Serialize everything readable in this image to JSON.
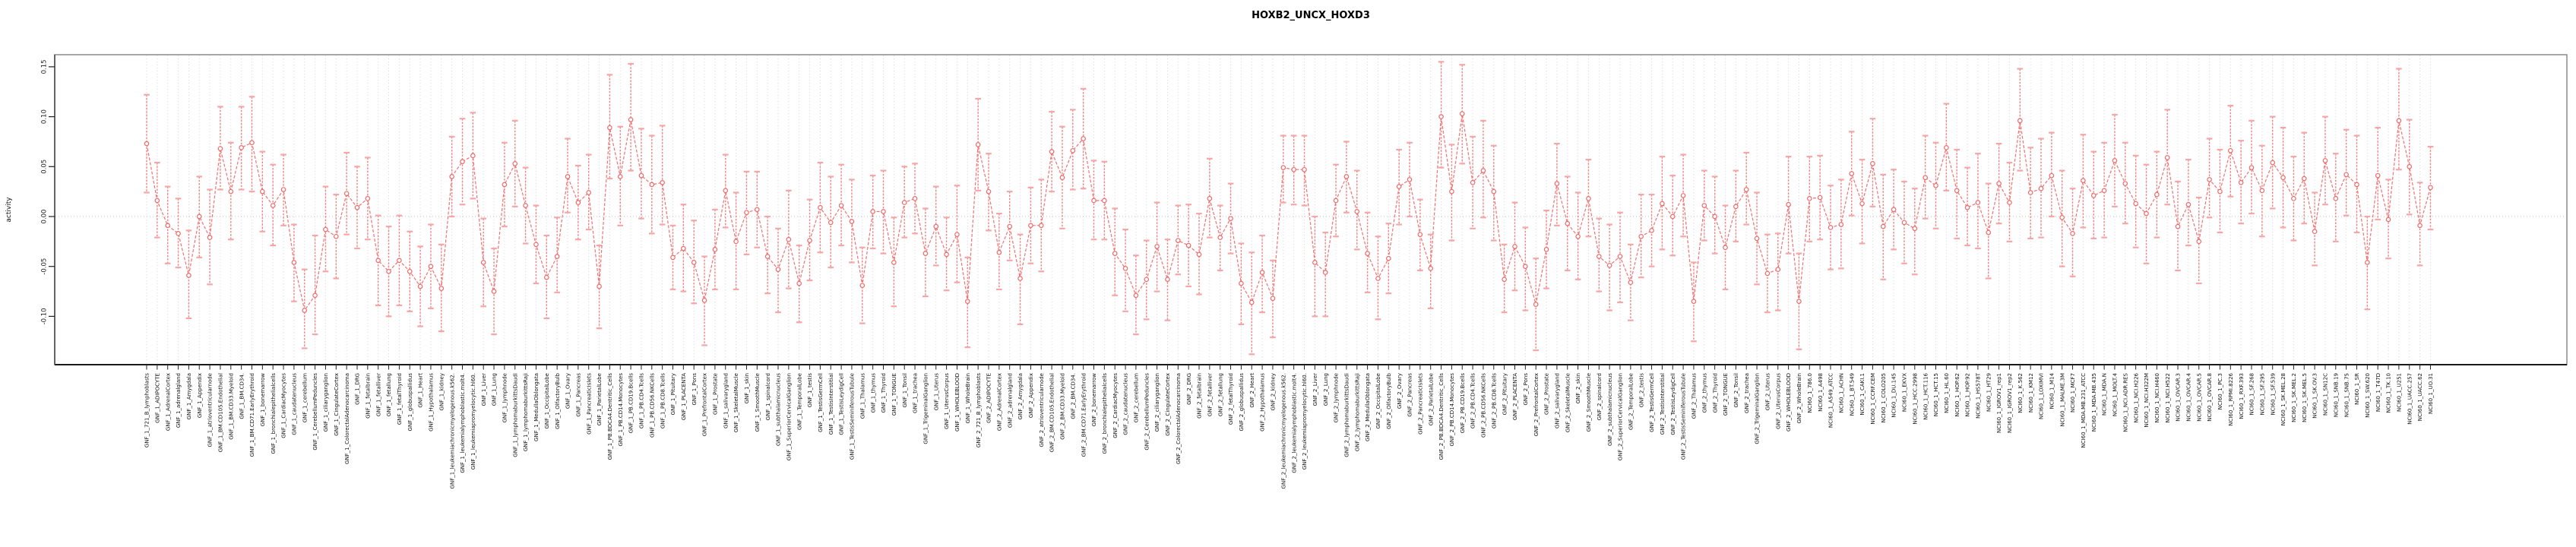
{
  "title": "HOXB2_UNCX_HOXD3",
  "axes": {
    "y_label": "activity",
    "y_ticks": [
      "0.15",
      "0.10",
      "0.05",
      "0.00",
      "-0.05",
      "-0.10"
    ]
  },
  "colors": {
    "series": "#ee6b6b",
    "error_bar_stem": "#ee7272",
    "error_bar_cap": "#f5a6a6",
    "grid": "#d9d9d9",
    "zero_line": "#cccccc",
    "box": "#8c8c8c",
    "axis": "#000000",
    "text": "#111111"
  },
  "chart_data": {
    "type": "line",
    "title": "HOXB2_UNCX_HOXD3",
    "xlabel": "",
    "ylabel": "activity",
    "ylim": [
      -0.14,
      0.16
    ],
    "y_tick_values": [
      0.15,
      0.1,
      0.05,
      0.0,
      -0.05,
      -0.1
    ],
    "grid": "vertical dotted line per category; dotted horizontal line at 0",
    "legend_position": "none",
    "point_style": "open circles connected by dashed line with error bars",
    "categories": [
      "GNF_1_721_B_lymphoblasts",
      "GNF_1_ADIPOCYTE",
      "GNF_1_AdrenalCortex",
      "GNF_1_adrenalgland",
      "GNF_1_Amygdala",
      "GNF_1_Appendix",
      "GNF_1_atrioventricularnode",
      "GNF_1_BM.CD105.Endothelial",
      "GNF_1_BM.CD33.Myeloid",
      "GNF_1_BM.CD34.",
      "GNF_1_BM.CD71.EarlyErythroid",
      "GNF_1_bonemarrow",
      "GNF_1_bronchialepithelialcells",
      "GNF_1_CardiacMyocytes",
      "GNF_1_caudatenucleus",
      "GNF_1_cerebellum",
      "GNF_1_CerebellumPeduncles",
      "GNF_1_ciliaryganglion",
      "GNF_1_CingulateCortex",
      "GNF_1_ColorectalAdenocarcinoma",
      "GNF_1_DRG",
      "GNF_1_fetalbrain",
      "GNF_1_fetalliver",
      "GNF_1_fetallung",
      "GNF_1_fetalThyroid",
      "GNF_1_globuspallidus",
      "GNF_1_Heart",
      "GNF_1_Hypothalamus",
      "GNF_1_kidney",
      "GNF_1_leukemiachronicmyelogenous.k562.",
      "GNF_1_leukemialymphoblastic.molt4.",
      "GNF_1_leukemiapromyelocytic.hl60.",
      "GNF_1_Liver",
      "GNF_1_Lung",
      "GNF_1_lymphnode",
      "GNF_1_lymphomaburkittsDaudi",
      "GNF_1_lymphomaburkittsRaji",
      "GNF_1_MedullaOblongata",
      "GNF_1_OccipitalLobe",
      "GNF_1_OlfactoryBulb",
      "GNF_1_Ovary",
      "GNF_1_Pancreas",
      "GNF_1_PancreaticIslets",
      "GNF_1_ParietalLobe",
      "GNF_1_PB.BDCA4.Dentritic_Cells",
      "GNF_1_PB.CD14.Monocytes",
      "GNF_1_PB.CD19.Bcells",
      "GNF_1_PB.CD4.Tcells",
      "GNF_1_PB.CD56.NKCells",
      "GNF_1_PB.CD8.Tcells",
      "GNF_1_Pituitary",
      "GNF_1_PLACENTA",
      "GNF_1_Pons",
      "GNF_1_PrefrontalCortex",
      "GNF_1_Prostate",
      "GNF_1_salivarygland",
      "GNF_1_SkeletalMuscle",
      "GNF_1_skin",
      "GNF_1_SmoothMuscle",
      "GNF_1_spinalcord",
      "GNF_1_subthalamicnucleus",
      "GNF_1_SuperiorCervicalGanglion",
      "GNF_1_TemporalLobe",
      "GNF_1_testis",
      "GNF_1_TestisGermCell",
      "GNF_1_TestisInterstitial",
      "GNF_1_TestisLeydigCell",
      "GNF_1_TestisSeminiferousTubule",
      "GNF_1_Thalamus",
      "GNF_1_thymus",
      "GNF_1_Thyroid",
      "GNF_1_TONGUE",
      "GNF_1_Tonsil",
      "GNF_1_trachea",
      "GNF_1_TrigeminalGanglion",
      "GNF_1_Uterus",
      "GNF_1_UterusCorpus",
      "GNF_1_WHOLEBLOOD",
      "GNF_1_WholeBrain",
      "GNF_2_721_B_lymphoblasts",
      "GNF_2_ADIPOCYTE",
      "GNF_2_AdrenalCortex",
      "GNF_2_adrenalgland",
      "GNF_2_Amygdala",
      "GNF_2_Appendix",
      "GNF_2_atrioventricularnode",
      "GNF_2_BM.CD105.Endothelial",
      "GNF_2_BM.CD33.Myeloid",
      "GNF_2_BM.CD34.",
      "GNF_2_BM.CD71.EarlyErythroid",
      "GNF_2_bonemarrow",
      "GNF_2_bronchialepithelialcells",
      "GNF_2_CardiacMyocytes",
      "GNF_2_caudatenucleus",
      "GNF_2_cerebellum",
      "GNF_2_CerebellumPeduncles",
      "GNF_2_ciliaryganglion",
      "GNF_2_CingulateCortex",
      "GNF_2_ColorectalAdenocarcinoma",
      "GNF_2_DRG",
      "GNF_2_fetalbrain",
      "GNF_2_fetalliver",
      "GNF_2_fetallung",
      "GNF_2_fetalThyroid",
      "GNF_2_globuspallidus",
      "GNF_2_Heart",
      "GNF_2_Hypothalamus",
      "GNF_2_kidney",
      "GNF_2_leukemiachronicmyelogenous.k562.",
      "GNF_2_leukemialymphoblastic.molt4.",
      "GNF_2_leukemiapromyelocytic.hl60.",
      "GNF_2_Liver",
      "GNF_2_Lung",
      "GNF_2_lymphnode",
      "GNF_2_lymphomaburkittsDaudi",
      "GNF_2_lymphomaburkittsRaji",
      "GNF_2_MedullaOblongata",
      "GNF_2_OccipitalLobe",
      "GNF_2_OlfactoryBulb",
      "GNF_2_Ovary",
      "GNF_2_Pancreas",
      "GNF_2_PancreaticIslets",
      "GNF_2_ParietalLobe",
      "GNF_2_PB.BDCA4.Dentritic_Cells",
      "GNF_2_PB.CD14.Monocytes",
      "GNF_2_PB.CD19.Bcells",
      "GNF_2_PB.CD4.Tcells",
      "GNF_2_PB.CD56.NKCells",
      "GNF_2_PB.CD8.Tcells",
      "GNF_2_Pituitary",
      "GNF_2_PLACENTA",
      "GNF_2_Pons",
      "GNF_2_PrefrontalCortex",
      "GNF_2_Prostate",
      "GNF_2_salivarygland",
      "GNF_2_SkeletalMuscle",
      "GNF_2_skin",
      "GNF_2_SmoothMuscle",
      "GNF_2_spinalcord",
      "GNF_2_subthalamicnucleus",
      "GNF_2_SuperiorCervicalGanglion",
      "GNF_2_TemporalLobe",
      "GNF_2_testis",
      "GNF_2_TestisGermCell",
      "GNF_2_TestisInterstitial",
      "GNF_2_TestisLeydigCell",
      "GNF_2_TestisSeminiferousTubule",
      "GNF_2_Thalamus",
      "GNF_2_thymus",
      "GNF_2_Thyroid",
      "GNF_2_TONGUE",
      "GNF_2_Tonsil",
      "GNF_2_trachea",
      "GNF_2_TrigeminalGanglion",
      "GNF_2_Uterus",
      "GNF_2_UterusCorpus",
      "GNF_2_WHOLEBLOOD",
      "GNF_2_WholeBrain",
      "NCI60_1_786.0",
      "NCI60_1_A498",
      "NCI60_1_A549_ATCC",
      "NCI60_1_ACHN",
      "NCI60_1_BT.549",
      "NCI60_1_CAKI.1",
      "NCI60_1_CCRF.CEM",
      "NCI60_1_COLO205",
      "NCI60_1_DU.145",
      "NCI60_1_EKVX",
      "NCI60_1_HCC.2998",
      "NCI60_1_HCT.116",
      "NCI60_1_HCT.15",
      "NCI60_1_HL.60",
      "NCI60_1_HOP.62",
      "NCI60_1_HOP.92",
      "NCI60_1_HS578T",
      "NCI60_1_HT29",
      "NCI60_1_IGROV1_rep1",
      "NCI60_1_IGROV1_rep2",
      "NCI60_1_K.562",
      "NCI60_1_KM12",
      "NCI60_1_LOXIMVI",
      "NCI60_1_M14",
      "NCI60_1_MALME.3M",
      "NCI60_1_MCF7",
      "NCI60_1_MDA.MB.231_ATCC",
      "NCI60_1_MDA.MB.435",
      "NCI60_1_MDA.N",
      "NCI60_1_MOLT.4",
      "NCI60_1_NCI.ADR.RES",
      "NCI60_1_NCI.H226",
      "NCI60_1_NCI.H322M",
      "NCI60_1_NCI.H460",
      "NCI60_1_NCI.H522",
      "NCI60_1_OVCAR.3",
      "NCI60_1_OVCAR.4",
      "NCI60_1_OVCAR.5",
      "NCI60_1_OVCAR.8",
      "NCI60_1_PC.3",
      "NCI60_1_RPMI.8226",
      "NCI60_1_RXF.393",
      "NCI60_1_SF.268",
      "NCI60_1_SF.295",
      "NCI60_1_SF.539",
      "NCI60_1_SK.MEL.28",
      "NCI60_1_SK.MEL.2",
      "NCI60_1_SK.MEL.5",
      "NCI60_1_SK.OV.3",
      "NCI60_1_SN12C",
      "NCI60_1_SNB.19",
      "NCI60_1_SNB.75",
      "NCI60_1_SR",
      "NCI60_1_SW.620",
      "NCI60_1_T47D",
      "NCI60_1_TK.10",
      "NCI60_1_U251",
      "NCI60_1_UACC.257",
      "NCI60_1_UACC.62",
      "NCI60_1_UO.31"
    ],
    "values": [
      0.073,
      0.016,
      -0.009,
      -0.017,
      -0.059,
      0.0,
      -0.021,
      0.068,
      0.025,
      0.069,
      0.074,
      0.025,
      0.011,
      0.027,
      -0.046,
      -0.094,
      -0.079,
      -0.013,
      -0.02,
      0.023,
      0.009,
      0.018,
      -0.044,
      -0.055,
      -0.044,
      -0.055,
      -0.07,
      -0.05,
      -0.072,
      0.04,
      0.055,
      0.061,
      -0.046,
      -0.075,
      0.032,
      0.053,
      0.011,
      -0.028,
      -0.061,
      -0.04,
      0.04,
      0.014,
      0.024,
      -0.07,
      0.089,
      0.04,
      0.097,
      0.041,
      0.032,
      0.034,
      -0.041,
      -0.032,
      -0.046,
      -0.084,
      -0.033,
      0.026,
      -0.025,
      0.004,
      0.007,
      -0.04,
      -0.053,
      -0.023,
      -0.067,
      -0.024,
      0.009,
      -0.006,
      0.011,
      -0.005,
      -0.069,
      0.005,
      0.005,
      -0.046,
      0.014,
      0.018,
      -0.037,
      -0.01,
      -0.038,
      -0.018,
      -0.085,
      0.072,
      0.025,
      -0.036,
      -0.01,
      -0.062,
      -0.009,
      -0.009,
      0.065,
      0.039,
      0.066,
      0.078,
      0.016,
      0.016,
      -0.037,
      -0.052,
      -0.079,
      -0.063,
      -0.03,
      -0.063,
      -0.024,
      -0.029,
      -0.038,
      0.018,
      -0.021,
      -0.002,
      -0.067,
      -0.086,
      -0.056,
      -0.082,
      0.049,
      0.047,
      0.047,
      -0.046,
      -0.056,
      0.016,
      0.04,
      0.005,
      -0.037,
      -0.062,
      -0.042,
      0.03,
      0.037,
      -0.018,
      -0.052,
      0.1,
      0.025,
      0.103,
      0.034,
      0.046,
      0.025,
      -0.063,
      -0.03,
      -0.05,
      -0.088,
      -0.033,
      0.033,
      -0.007,
      -0.02,
      0.018,
      -0.04,
      -0.049,
      -0.04,
      -0.066,
      -0.02,
      -0.014,
      0.013,
      0.0,
      0.021,
      -0.085,
      0.011,
      0.0,
      -0.031,
      0.01,
      0.027,
      -0.022,
      -0.057,
      -0.053,
      0.012,
      -0.085,
      0.018,
      0.019,
      -0.011,
      -0.008,
      0.043,
      0.013,
      0.053,
      -0.01,
      0.007,
      -0.006,
      -0.012,
      0.039,
      0.031,
      0.069,
      0.026,
      0.009,
      0.014,
      -0.016,
      0.033,
      0.014,
      0.096,
      0.024,
      0.028,
      0.041,
      -0.001,
      -0.017,
      0.036,
      0.021,
      0.026,
      0.056,
      0.033,
      0.013,
      0.003,
      0.022,
      0.059,
      -0.01,
      0.012,
      -0.025,
      0.037,
      0.025,
      0.066,
      0.034,
      0.049,
      0.026,
      0.054,
      0.039,
      0.018,
      0.038,
      -0.015,
      0.056,
      0.018,
      0.042,
      0.032,
      -0.046,
      0.041,
      -0.003,
      0.096,
      0.05,
      -0.009,
      0.029
    ],
    "err_low": [
      0.024,
      -0.021,
      -0.047,
      -0.051,
      -0.102,
      -0.041,
      -0.068,
      0.027,
      -0.023,
      0.027,
      0.025,
      -0.015,
      -0.029,
      -0.009,
      -0.085,
      -0.132,
      -0.118,
      -0.055,
      -0.062,
      -0.018,
      -0.032,
      -0.023,
      -0.089,
      -0.1,
      -0.089,
      -0.095,
      -0.11,
      -0.092,
      -0.115,
      0.0,
      0.012,
      0.018,
      -0.09,
      -0.118,
      -0.01,
      0.01,
      -0.027,
      -0.067,
      -0.102,
      -0.076,
      0.004,
      -0.023,
      -0.013,
      -0.112,
      0.038,
      -0.009,
      0.046,
      -0.002,
      -0.017,
      -0.008,
      -0.073,
      -0.075,
      -0.087,
      -0.129,
      -0.073,
      -0.011,
      -0.073,
      -0.038,
      -0.031,
      -0.077,
      -0.096,
      -0.072,
      -0.106,
      -0.064,
      -0.036,
      -0.051,
      -0.029,
      -0.046,
      -0.107,
      -0.032,
      -0.037,
      -0.09,
      -0.021,
      -0.017,
      -0.08,
      -0.049,
      -0.074,
      -0.066,
      -0.131,
      0.026,
      -0.014,
      -0.073,
      -0.044,
      -0.108,
      -0.047,
      -0.055,
      0.025,
      -0.012,
      0.027,
      0.028,
      -0.023,
      -0.023,
      -0.079,
      -0.095,
      -0.118,
      -0.103,
      -0.075,
      -0.104,
      -0.058,
      -0.07,
      -0.078,
      -0.021,
      -0.054,
      -0.037,
      -0.108,
      -0.138,
      -0.096,
      -0.121,
      0.014,
      0.012,
      0.011,
      -0.1,
      -0.1,
      -0.02,
      0.004,
      -0.033,
      -0.076,
      -0.103,
      -0.077,
      -0.008,
      0.0,
      -0.054,
      -0.092,
      0.049,
      -0.024,
      0.053,
      -0.012,
      -0.001,
      -0.024,
      -0.096,
      -0.074,
      -0.094,
      -0.134,
      -0.072,
      -0.009,
      -0.054,
      -0.063,
      -0.02,
      -0.075,
      -0.094,
      -0.086,
      -0.104,
      -0.061,
      -0.05,
      -0.033,
      -0.039,
      -0.02,
      -0.125,
      -0.024,
      -0.037,
      -0.073,
      -0.025,
      -0.008,
      -0.068,
      -0.096,
      -0.094,
      -0.037,
      -0.133,
      -0.025,
      -0.023,
      -0.053,
      -0.052,
      0.001,
      -0.027,
      0.01,
      -0.063,
      -0.033,
      -0.047,
      -0.058,
      -0.002,
      -0.012,
      0.026,
      -0.022,
      -0.029,
      -0.032,
      -0.062,
      -0.007,
      -0.025,
      0.046,
      -0.022,
      -0.021,
      0.0,
      -0.05,
      -0.06,
      -0.011,
      -0.022,
      -0.021,
      0.01,
      -0.007,
      -0.031,
      -0.047,
      -0.021,
      0.012,
      -0.054,
      -0.029,
      -0.067,
      -0.001,
      -0.016,
      0.02,
      -0.007,
      0.003,
      -0.02,
      0.008,
      -0.011,
      -0.024,
      -0.007,
      -0.049,
      0.012,
      -0.025,
      0.001,
      -0.016,
      -0.093,
      -0.003,
      -0.042,
      0.047,
      0.002,
      -0.049,
      -0.013
    ],
    "err_high": [
      0.122,
      0.054,
      0.03,
      0.018,
      -0.014,
      0.04,
      0.027,
      0.11,
      0.074,
      0.11,
      0.12,
      0.065,
      0.052,
      0.062,
      -0.008,
      -0.053,
      -0.019,
      0.03,
      0.022,
      0.064,
      0.05,
      0.059,
      0.001,
      -0.01,
      0.001,
      -0.015,
      -0.03,
      -0.008,
      -0.028,
      0.08,
      0.098,
      0.104,
      -0.002,
      -0.032,
      0.074,
      0.096,
      0.049,
      0.011,
      -0.019,
      -0.001,
      0.078,
      0.051,
      0.062,
      -0.029,
      0.142,
      0.09,
      0.153,
      0.088,
      0.081,
      0.091,
      -0.009,
      0.012,
      -0.004,
      -0.04,
      0.007,
      0.062,
      0.024,
      0.045,
      0.045,
      0.0,
      -0.012,
      0.026,
      -0.029,
      0.017,
      0.054,
      0.04,
      0.052,
      0.037,
      -0.031,
      0.041,
      0.046,
      -0.001,
      0.05,
      0.053,
      0.008,
      0.03,
      -0.001,
      0.031,
      -0.041,
      0.118,
      0.063,
      0.003,
      0.025,
      -0.018,
      0.029,
      0.037,
      0.105,
      0.09,
      0.107,
      0.128,
      0.056,
      0.055,
      0.008,
      -0.013,
      -0.039,
      -0.024,
      0.014,
      -0.023,
      0.011,
      0.012,
      0.003,
      0.058,
      0.011,
      0.033,
      -0.027,
      -0.036,
      -0.019,
      -0.044,
      0.081,
      0.081,
      0.081,
      0.0,
      -0.016,
      0.052,
      0.075,
      0.046,
      0.004,
      -0.02,
      -0.007,
      0.067,
      0.074,
      0.017,
      -0.018,
      0.155,
      0.072,
      0.152,
      0.08,
      0.096,
      0.071,
      -0.028,
      0.014,
      -0.011,
      -0.042,
      0.006,
      0.073,
      0.04,
      0.024,
      0.057,
      -0.002,
      -0.008,
      0.004,
      -0.028,
      0.022,
      0.022,
      0.06,
      0.041,
      0.062,
      -0.046,
      0.046,
      0.04,
      0.011,
      0.046,
      0.064,
      0.024,
      -0.018,
      -0.017,
      0.06,
      -0.037,
      0.06,
      0.061,
      0.031,
      0.037,
      0.085,
      0.057,
      0.098,
      0.042,
      0.047,
      0.035,
      0.028,
      0.081,
      0.074,
      0.113,
      0.067,
      0.049,
      0.063,
      0.033,
      0.073,
      0.054,
      0.148,
      0.069,
      0.078,
      0.084,
      0.046,
      0.028,
      0.082,
      0.065,
      0.074,
      0.102,
      0.074,
      0.061,
      0.052,
      0.065,
      0.107,
      0.035,
      0.057,
      0.019,
      0.078,
      0.067,
      0.111,
      0.076,
      0.096,
      0.071,
      0.1,
      0.089,
      0.06,
      0.084,
      0.024,
      0.1,
      0.063,
      0.087,
      0.081,
      0.0,
      0.089,
      0.037,
      0.148,
      0.097,
      0.034,
      0.07
    ]
  }
}
